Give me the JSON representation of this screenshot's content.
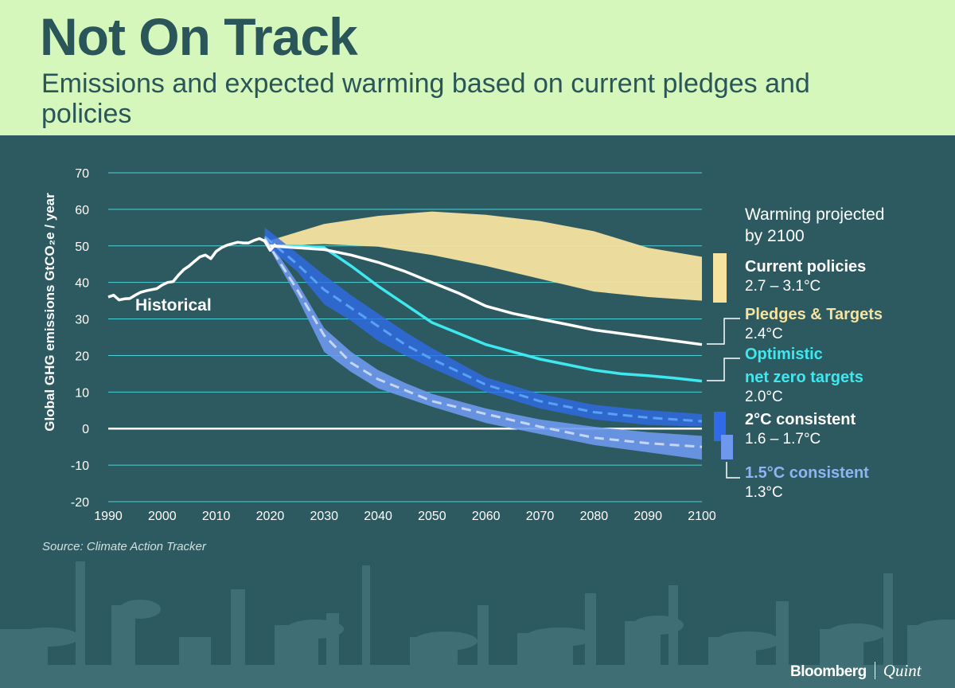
{
  "header": {
    "title": "Not On Track",
    "subtitle": "Emissions and expected warming based on current pledges and policies"
  },
  "source": "Source: Climate Action Tracker",
  "brand": {
    "name": "Bloomberg",
    "partner": "Quint"
  },
  "legend": {
    "heading": [
      "Warming projected",
      "by 2100"
    ],
    "items": [
      {
        "name": "Current policies",
        "range": "2.7 – 3.1°C",
        "color": "#f6e3a0"
      },
      {
        "name": "Pledges & Targets",
        "range": "2.4°C",
        "color": "#f6e3a0"
      },
      {
        "name": [
          "Optimistic",
          "net zero targets"
        ],
        "range": "2.0°C",
        "color": "#3ee8ef"
      },
      {
        "name": "2°C consistent",
        "range": "1.6 – 1.7°C",
        "color": "#2f6be8"
      },
      {
        "name": "1.5°C consistent",
        "range": "1.3°C",
        "color": "#6d98ee"
      }
    ]
  },
  "chart_data": {
    "type": "line",
    "ylabel": "Global GHG emissions  GtCO₂e / year",
    "xlim": [
      1990,
      2100
    ],
    "ylim": [
      -20,
      70
    ],
    "xticks": [
      1990,
      2000,
      2010,
      2020,
      2030,
      2040,
      2050,
      2060,
      2070,
      2080,
      2090,
      2100
    ],
    "yticks": [
      70,
      60,
      50,
      40,
      30,
      20,
      10,
      0,
      -10,
      -20
    ],
    "historical": {
      "name": "Historical",
      "x": [
        1990,
        1991,
        1992,
        1993,
        1994,
        1995,
        1996,
        1997,
        1998,
        1999,
        2000,
        2001,
        2002,
        2003,
        2004,
        2005,
        2006,
        2007,
        2008,
        2009,
        2010,
        2011,
        2012,
        2013,
        2014,
        2015,
        2016,
        2017,
        2018,
        2019,
        2020,
        2021
      ],
      "y": [
        36,
        36.5,
        35.2,
        35.5,
        35.6,
        36.5,
        37.3,
        37.7,
        38,
        38.3,
        39.3,
        40,
        40.2,
        42,
        43.5,
        44.5,
        45.8,
        47,
        47.5,
        46.5,
        48.5,
        49.5,
        50.2,
        50.6,
        51,
        50.8,
        50.8,
        51.5,
        52,
        51.3,
        48.8,
        50.5
      ]
    },
    "series": [
      {
        "name": "Current policies",
        "type": "band",
        "color": "#f6e3a0",
        "x": [
          2020,
          2030,
          2040,
          2050,
          2060,
          2070,
          2080,
          2090,
          2100
        ],
        "upper": [
          51.5,
          56,
          58.2,
          59.4,
          58.5,
          56.8,
          54,
          49.5,
          47
        ],
        "lower": [
          50,
          50.5,
          49.8,
          47.5,
          44.5,
          41,
          37.5,
          36,
          35
        ]
      },
      {
        "name": "Pledges & Targets",
        "type": "line",
        "color": "#ffffff",
        "x": [
          2020,
          2025,
          2030,
          2035,
          2040,
          2045,
          2050,
          2055,
          2060,
          2065,
          2070,
          2075,
          2080,
          2085,
          2090,
          2095,
          2100
        ],
        "y": [
          50,
          49.5,
          49,
          47.5,
          45.5,
          43,
          40,
          37,
          33.5,
          31.5,
          30,
          28.5,
          27,
          26,
          25,
          24,
          23
        ]
      },
      {
        "name": "Optimistic net zero targets",
        "type": "line",
        "color": "#3ee8ef",
        "x": [
          2020,
          2025,
          2030,
          2035,
          2040,
          2045,
          2050,
          2055,
          2060,
          2065,
          2070,
          2075,
          2080,
          2085,
          2090,
          2095,
          2100
        ],
        "y": [
          50,
          50,
          49.5,
          44.5,
          39,
          34,
          29,
          26,
          23,
          21,
          19,
          17.5,
          16,
          15,
          14.5,
          13.8,
          13
        ]
      },
      {
        "name": "2°C consistent",
        "type": "band",
        "color": "#2f6be8",
        "x": [
          2019,
          2025,
          2030,
          2035,
          2040,
          2045,
          2050,
          2060,
          2070,
          2080,
          2090,
          2100
        ],
        "upper": [
          55,
          48,
          42,
          36.5,
          31.5,
          26.5,
          22,
          14,
          9.5,
          6.5,
          5,
          4
        ],
        "lower": [
          50.5,
          43,
          34,
          29.5,
          24,
          20,
          16.5,
          10,
          5.5,
          2.5,
          1,
          0.5
        ],
        "mid": [
          52.5,
          45,
          38,
          33,
          28,
          23,
          19,
          12,
          7.5,
          4.5,
          3,
          2
        ]
      },
      {
        "name": "1.5°C consistent",
        "type": "band",
        "color": "#6d98ee",
        "x": [
          2019,
          2025,
          2030,
          2035,
          2040,
          2045,
          2050,
          2060,
          2070,
          2080,
          2090,
          2100
        ],
        "upper": [
          53,
          40,
          27.5,
          21,
          16,
          12.5,
          9.5,
          5.5,
          2.5,
          0.5,
          -1,
          -2
        ],
        "lower": [
          51.5,
          36,
          21,
          15.5,
          11,
          8.5,
          6,
          1.5,
          -1.5,
          -4.5,
          -6.5,
          -8.5
        ],
        "mid": [
          52,
          38,
          25.5,
          18,
          13.5,
          10.5,
          7.5,
          4,
          0.5,
          -2.5,
          -4,
          -5
        ]
      }
    ]
  }
}
